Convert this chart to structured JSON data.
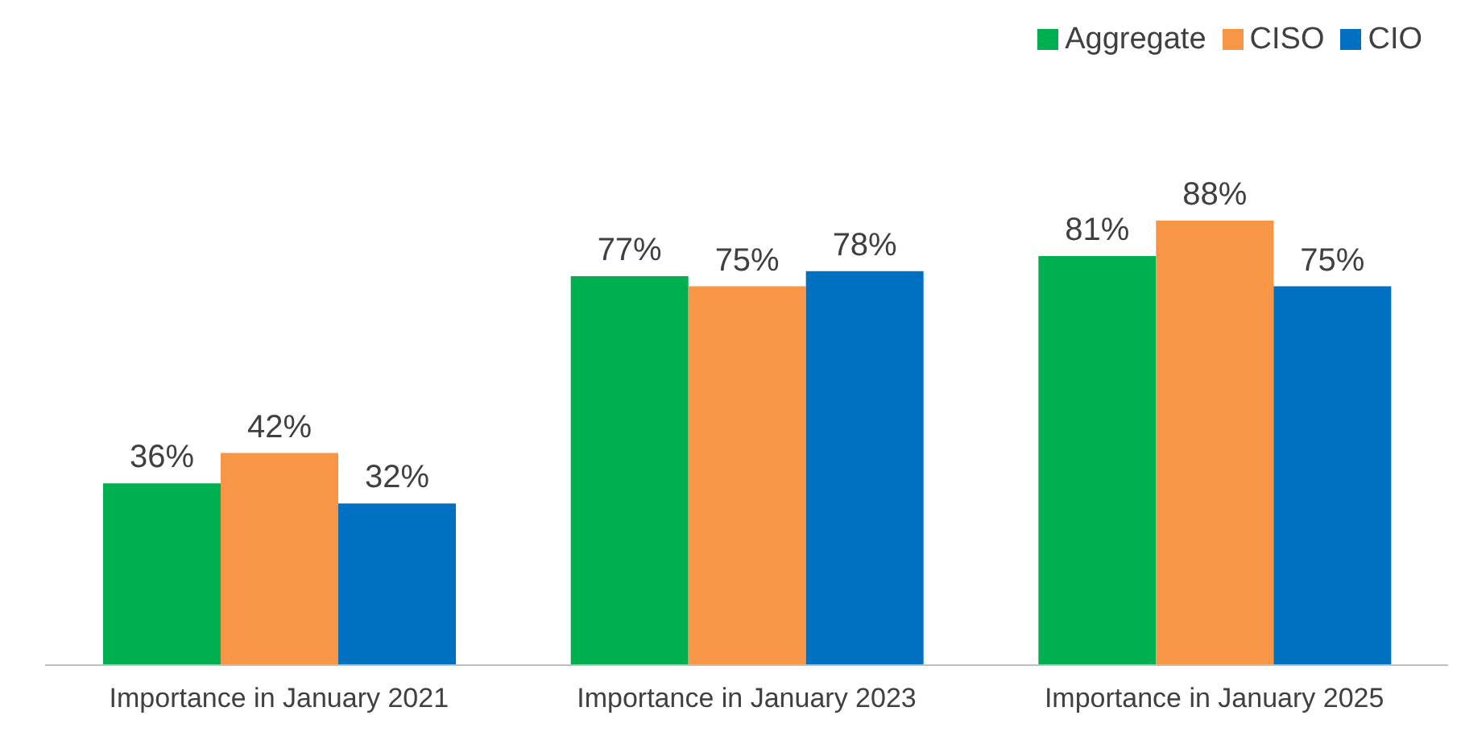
{
  "chart_data": {
    "type": "bar",
    "categories": [
      "Importance in January 2021",
      "Importance in January 2023",
      "Importance in January 2025"
    ],
    "series": [
      {
        "name": "Aggregate",
        "color": "#00b050",
        "values": [
          36,
          77,
          81
        ],
        "value_labels": [
          "36%",
          "77%",
          "81%"
        ]
      },
      {
        "name": "CISO",
        "color": "#f79646",
        "values": [
          42,
          75,
          88
        ],
        "value_labels": [
          "42%",
          "75%",
          "88%"
        ]
      },
      {
        "name": "CIO",
        "color": "#0070c0",
        "values": [
          32,
          78,
          75
        ],
        "value_labels": [
          "32%",
          "78%",
          "75%"
        ]
      }
    ],
    "legend": "top right",
    "grid": false
  }
}
